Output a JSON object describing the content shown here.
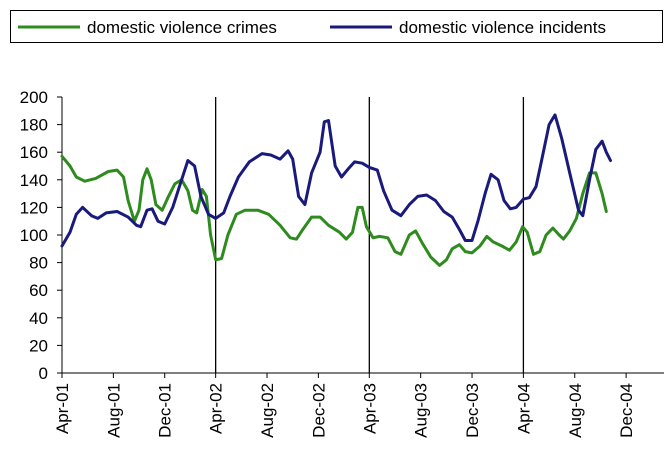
{
  "chart_data": {
    "type": "line",
    "title": "",
    "xlabel": "",
    "ylabel": "",
    "ylim": [
      0,
      200
    ],
    "yticks": [
      0,
      20,
      40,
      60,
      80,
      100,
      120,
      140,
      160,
      180,
      200
    ],
    "xlim": [
      "2001-04",
      "2005-03"
    ],
    "xticks": [
      "Apr-01",
      "Aug-01",
      "Dec-01",
      "Apr-02",
      "Aug-02",
      "Dec-02",
      "Apr-03",
      "Aug-03",
      "Dec-03",
      "Apr-04",
      "Aug-04",
      "Dec-04"
    ],
    "vertical_lines": [
      "Apr-02",
      "Apr-03",
      "Apr-04"
    ],
    "legend_position": "top",
    "grid": false,
    "series": [
      {
        "name": "domestic violence crimes",
        "color": "#2e8b1e",
        "points": [
          [
            "2001-04-01",
            157
          ],
          [
            "2001-04-20",
            150
          ],
          [
            "2001-05-05",
            142
          ],
          [
            "2001-05-25",
            139
          ],
          [
            "2001-06-20",
            141
          ],
          [
            "2001-07-20",
            146
          ],
          [
            "2001-08-10",
            147
          ],
          [
            "2001-08-25",
            142
          ],
          [
            "2001-09-05",
            125
          ],
          [
            "2001-09-20",
            110
          ],
          [
            "2001-10-01",
            118
          ],
          [
            "2001-10-10",
            140
          ],
          [
            "2001-10-20",
            148
          ],
          [
            "2001-10-30",
            140
          ],
          [
            "2001-11-10",
            122
          ],
          [
            "2001-11-25",
            118
          ],
          [
            "2001-12-10",
            128
          ],
          [
            "2001-12-25",
            137
          ],
          [
            "2002-01-10",
            140
          ],
          [
            "2002-01-25",
            132
          ],
          [
            "2002-02-05",
            118
          ],
          [
            "2002-02-15",
            116
          ],
          [
            "2002-02-28",
            133
          ],
          [
            "2002-03-10",
            128
          ],
          [
            "2002-03-20",
            100
          ],
          [
            "2002-04-01",
            82
          ],
          [
            "2002-04-15",
            83
          ],
          [
            "2002-04-30",
            100
          ],
          [
            "2002-05-20",
            115
          ],
          [
            "2002-06-10",
            118
          ],
          [
            "2002-07-10",
            118
          ],
          [
            "2002-08-05",
            115
          ],
          [
            "2002-09-01",
            107
          ],
          [
            "2002-09-25",
            98
          ],
          [
            "2002-10-10",
            97
          ],
          [
            "2002-10-25",
            104
          ],
          [
            "2002-11-15",
            113
          ],
          [
            "2002-12-05",
            113
          ],
          [
            "2002-12-25",
            107
          ],
          [
            "2003-01-20",
            102
          ],
          [
            "2003-02-05",
            97
          ],
          [
            "2003-02-20",
            102
          ],
          [
            "2003-03-05",
            120
          ],
          [
            "2003-03-15",
            120
          ],
          [
            "2003-03-25",
            106
          ],
          [
            "2003-04-10",
            98
          ],
          [
            "2003-04-25",
            99
          ],
          [
            "2003-05-15",
            98
          ],
          [
            "2003-06-01",
            88
          ],
          [
            "2003-06-15",
            86
          ],
          [
            "2003-07-05",
            100
          ],
          [
            "2003-07-20",
            103
          ],
          [
            "2003-08-05",
            94
          ],
          [
            "2003-08-25",
            84
          ],
          [
            "2003-09-15",
            78
          ],
          [
            "2003-10-01",
            82
          ],
          [
            "2003-10-15",
            90
          ],
          [
            "2003-11-01",
            93
          ],
          [
            "2003-11-15",
            88
          ],
          [
            "2003-12-01",
            87
          ],
          [
            "2003-12-20",
            92
          ],
          [
            "2004-01-05",
            99
          ],
          [
            "2004-01-20",
            95
          ],
          [
            "2004-02-10",
            92
          ],
          [
            "2004-02-28",
            89
          ],
          [
            "2004-03-15",
            95
          ],
          [
            "2004-03-30",
            106
          ],
          [
            "2004-04-10",
            102
          ],
          [
            "2004-04-25",
            86
          ],
          [
            "2004-05-10",
            88
          ],
          [
            "2004-05-25",
            100
          ],
          [
            "2004-06-10",
            105
          ],
          [
            "2004-06-25",
            100
          ],
          [
            "2004-07-05",
            97
          ],
          [
            "2004-07-20",
            103
          ],
          [
            "2004-08-05",
            112
          ],
          [
            "2004-08-20",
            130
          ],
          [
            "2004-09-05",
            145
          ],
          [
            "2004-09-20",
            145
          ],
          [
            "2004-10-05",
            130
          ],
          [
            "2004-10-15",
            117
          ]
        ]
      },
      {
        "name": "domestic violence incidents",
        "color": "#1a1a7c",
        "points": [
          [
            "2001-04-01",
            92
          ],
          [
            "2001-04-20",
            102
          ],
          [
            "2001-05-05",
            115
          ],
          [
            "2001-05-20",
            120
          ],
          [
            "2001-06-10",
            114
          ],
          [
            "2001-06-25",
            112
          ],
          [
            "2001-07-15",
            116
          ],
          [
            "2001-08-10",
            117
          ],
          [
            "2001-09-05",
            113
          ],
          [
            "2001-09-25",
            107
          ],
          [
            "2001-10-05",
            106
          ],
          [
            "2001-10-20",
            118
          ],
          [
            "2001-11-01",
            119
          ],
          [
            "2001-11-15",
            110
          ],
          [
            "2001-12-01",
            108
          ],
          [
            "2001-12-20",
            120
          ],
          [
            "2002-01-10",
            140
          ],
          [
            "2002-01-25",
            154
          ],
          [
            "2002-02-10",
            150
          ],
          [
            "2002-02-25",
            128
          ],
          [
            "2002-03-15",
            115
          ],
          [
            "2002-04-01",
            112
          ],
          [
            "2002-04-20",
            116
          ],
          [
            "2002-05-05",
            128
          ],
          [
            "2002-05-25",
            142
          ],
          [
            "2002-06-20",
            153
          ],
          [
            "2002-07-20",
            159
          ],
          [
            "2002-08-10",
            158
          ],
          [
            "2002-09-01",
            155
          ],
          [
            "2002-09-20",
            161
          ],
          [
            "2002-10-01",
            155
          ],
          [
            "2002-10-15",
            128
          ],
          [
            "2002-10-30",
            122
          ],
          [
            "2002-11-15",
            145
          ],
          [
            "2002-12-05",
            160
          ],
          [
            "2002-12-15",
            182
          ],
          [
            "2002-12-25",
            183
          ],
          [
            "2003-01-10",
            150
          ],
          [
            "2003-01-25",
            142
          ],
          [
            "2003-02-10",
            148
          ],
          [
            "2003-02-25",
            153
          ],
          [
            "2003-03-15",
            152
          ],
          [
            "2003-04-01",
            149
          ],
          [
            "2003-04-20",
            147
          ],
          [
            "2003-05-05",
            132
          ],
          [
            "2003-05-25",
            118
          ],
          [
            "2003-06-15",
            114
          ],
          [
            "2003-07-05",
            122
          ],
          [
            "2003-07-25",
            128
          ],
          [
            "2003-08-15",
            129
          ],
          [
            "2003-09-05",
            125
          ],
          [
            "2003-09-25",
            117
          ],
          [
            "2003-10-15",
            113
          ],
          [
            "2003-11-01",
            104
          ],
          [
            "2003-11-15",
            96
          ],
          [
            "2003-12-01",
            96
          ],
          [
            "2003-12-15",
            110
          ],
          [
            "2004-01-01",
            130
          ],
          [
            "2004-01-15",
            144
          ],
          [
            "2004-02-01",
            140
          ],
          [
            "2004-02-15",
            125
          ],
          [
            "2004-03-01",
            119
          ],
          [
            "2004-03-15",
            120
          ],
          [
            "2004-04-01",
            126
          ],
          [
            "2004-04-15",
            127
          ],
          [
            "2004-05-01",
            135
          ],
          [
            "2004-05-15",
            155
          ],
          [
            "2004-06-01",
            180
          ],
          [
            "2004-06-15",
            187
          ],
          [
            "2004-07-01",
            170
          ],
          [
            "2004-07-20",
            145
          ],
          [
            "2004-08-10",
            118
          ],
          [
            "2004-08-20",
            114
          ],
          [
            "2004-09-05",
            140
          ],
          [
            "2004-09-20",
            162
          ],
          [
            "2004-10-05",
            168
          ],
          [
            "2004-10-15",
            160
          ],
          [
            "2004-10-25",
            154
          ]
        ]
      }
    ]
  }
}
